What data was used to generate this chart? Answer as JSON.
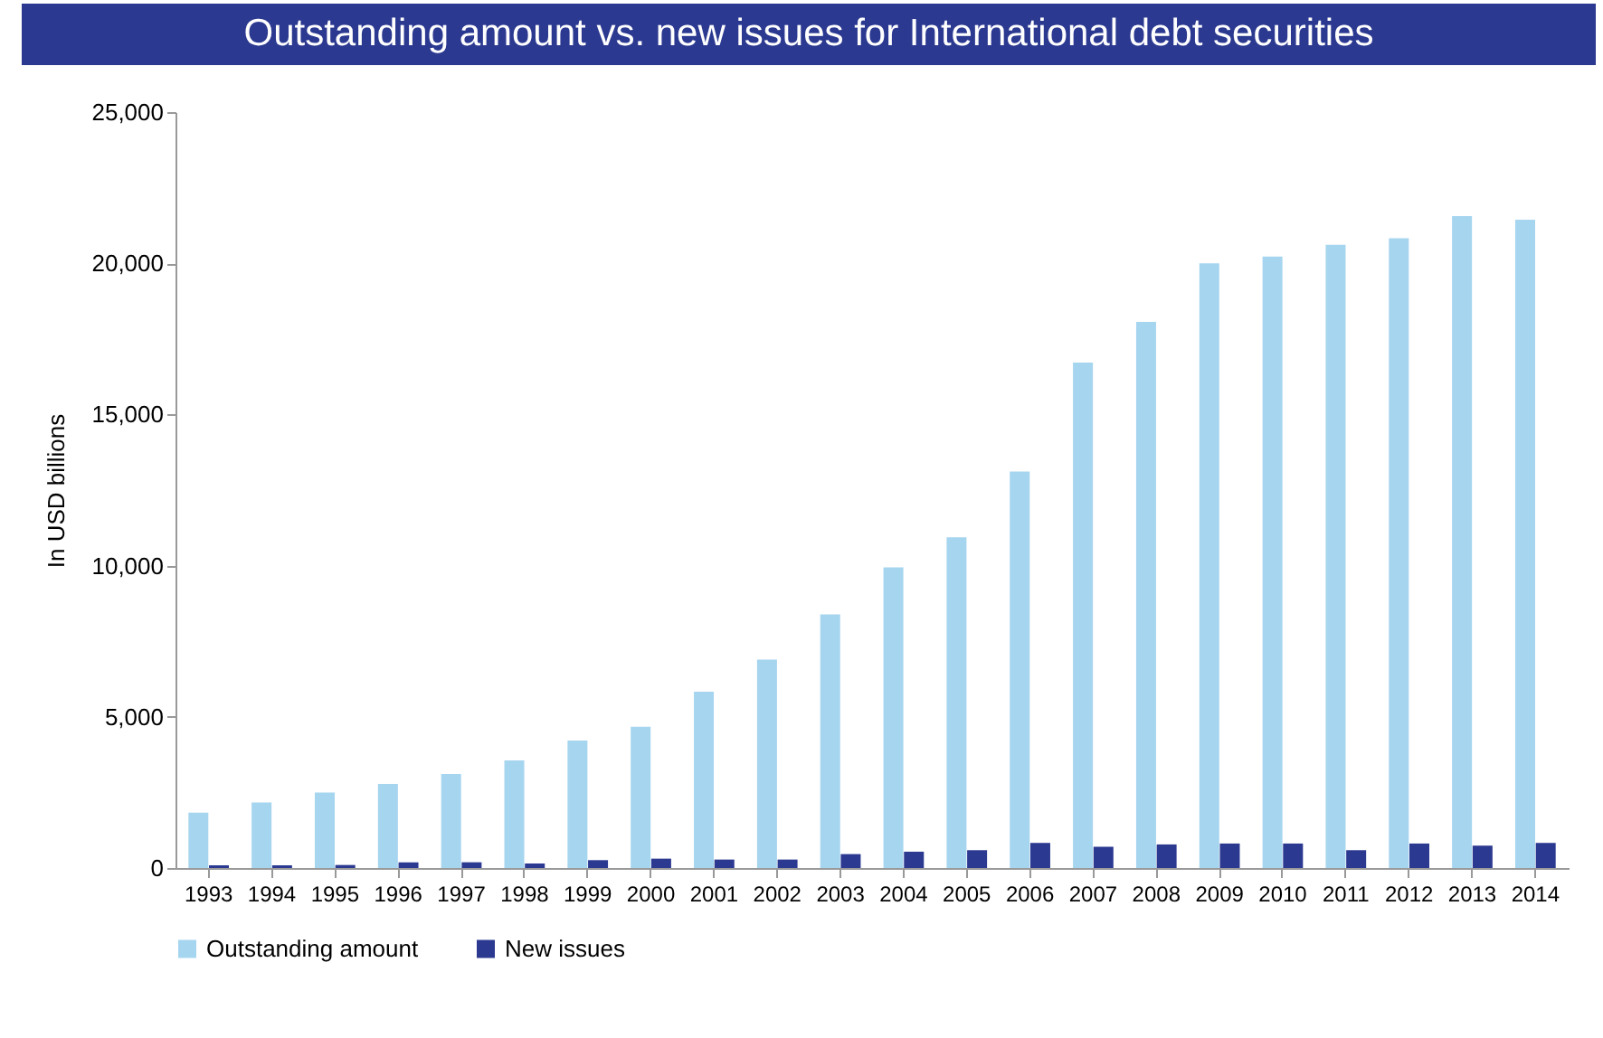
{
  "chart_data": {
    "type": "bar",
    "title": "Outstanding amount vs. new issues for International debt securities",
    "ylabel": "In USD billions",
    "categories": [
      "1993",
      "1994",
      "1995",
      "1996",
      "1997",
      "1998",
      "1999",
      "2000",
      "2001",
      "2002",
      "2003",
      "2004",
      "2005",
      "2006",
      "2007",
      "2008",
      "2009",
      "2010",
      "2011",
      "2012",
      "2013",
      "2014"
    ],
    "series": [
      {
        "name": "Outstanding amount",
        "color": "#a6d5ef",
        "values": [
          1830,
          2170,
          2500,
          2780,
          3110,
          3560,
          4220,
          4670,
          5830,
          6890,
          8390,
          9940,
          10940,
          13110,
          16720,
          18060,
          20000,
          20220,
          20610,
          20830,
          21560,
          21440
        ]
      },
      {
        "name": "New issues",
        "color": "#2b3990",
        "values": [
          90,
          90,
          100,
          190,
          190,
          150,
          260,
          310,
          280,
          280,
          460,
          540,
          590,
          830,
          700,
          780,
          810,
          810,
          590,
          810,
          740,
          830
        ]
      }
    ],
    "ylim": [
      0,
      25000
    ],
    "yticks": [
      0,
      {
        "value": 5000,
        "label": "5,000"
      },
      {
        "value": 10000,
        "label": "10,000"
      },
      {
        "value": 15000,
        "label": "15,000"
      },
      {
        "value": 20000,
        "label": "20,000"
      },
      {
        "value": 25000,
        "label": "25,000"
      }
    ],
    "grid": false,
    "legend": "bottom"
  }
}
